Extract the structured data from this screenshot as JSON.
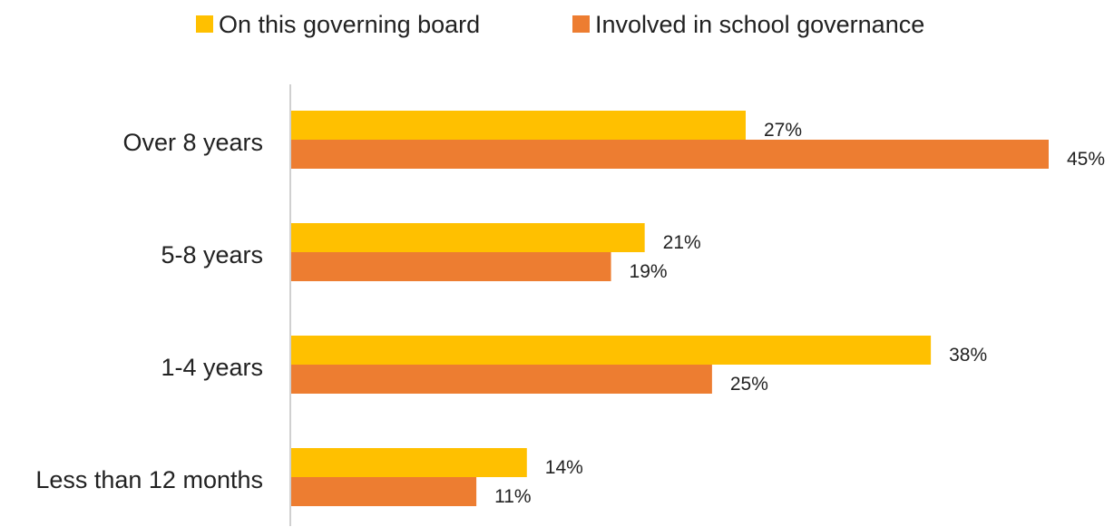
{
  "chart_data": {
    "type": "bar",
    "orientation": "horizontal",
    "categories": [
      "Over 8 years",
      "5-8 years",
      "1-4 years",
      "Less than 12 months"
    ],
    "series": [
      {
        "name": "On this governing board",
        "values": [
          27,
          21,
          38,
          14
        ],
        "labels": [
          "27%",
          "21%",
          "38%",
          "14%"
        ],
        "color": "#FFC000"
      },
      {
        "name": "Involved in school governance",
        "values": [
          45,
          19,
          25,
          11
        ],
        "labels": [
          "45%",
          "19%",
          "25%",
          "11%"
        ],
        "color": "#ED7D31"
      }
    ],
    "title": "",
    "xlabel": "",
    "ylabel": "",
    "xlim": [
      0,
      45
    ],
    "grid": false,
    "legend_position": "top"
  }
}
